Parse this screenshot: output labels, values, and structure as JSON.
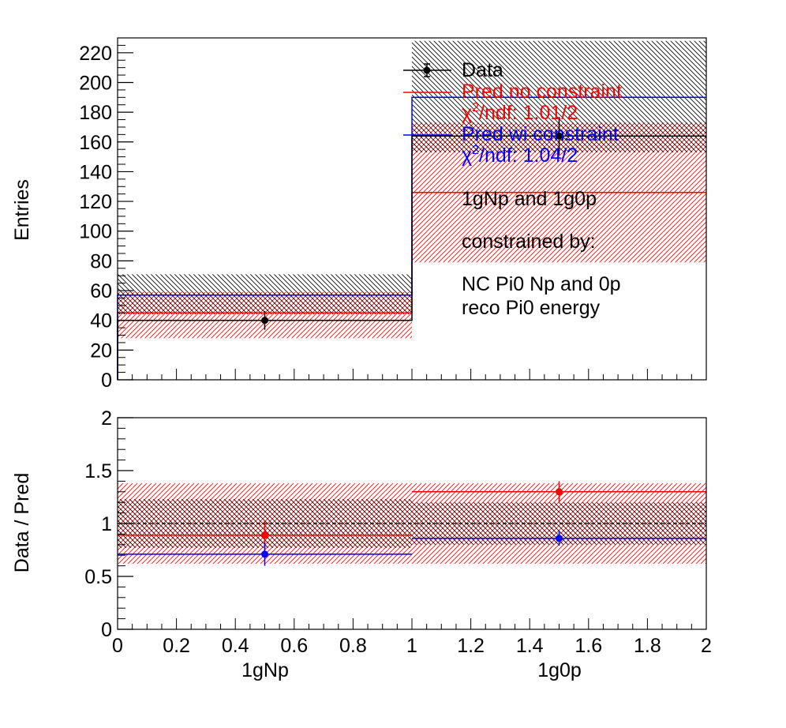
{
  "chart_data": [
    {
      "type": "histogram",
      "panel": "top",
      "ylabel": "Entries",
      "ylim": [
        0,
        230
      ],
      "yticks": [
        0,
        20,
        40,
        60,
        80,
        100,
        120,
        140,
        160,
        180,
        200,
        220
      ],
      "bins": [
        [
          0,
          1
        ],
        [
          1,
          2
        ]
      ],
      "series": [
        {
          "name": "Data",
          "style": "points",
          "color": "#000000",
          "values": [
            40,
            164
          ],
          "err": [
            6.3,
            12.8
          ]
        },
        {
          "name": "Pred no constraint",
          "style": "step",
          "color": "#ff0000",
          "values": [
            45,
            126
          ],
          "band_low": [
            28,
            79
          ],
          "band_high": [
            59,
            173
          ]
        },
        {
          "name": "Pred wi constraint",
          "style": "step",
          "color": "#0000ff",
          "values": [
            57,
            190
          ],
          "band_low": [
            44,
            153
          ],
          "band_high": [
            71,
            228
          ]
        },
        {
          "style": "step",
          "color": "#000000",
          "values": [
            40,
            164
          ]
        }
      ],
      "legend": {
        "placement": "top-right",
        "entries": [
          {
            "label": "Data",
            "color": "#000000"
          },
          {
            "label": "Pred no constraint",
            "color": "#ff0000"
          },
          {
            "label_base": "χ",
            "label_sup": "2",
            "label_rest": "/ndf: 1.01/2",
            "color": "#ff0000"
          },
          {
            "label": "Pred wi constraint",
            "color": "#0000ff"
          },
          {
            "label_base": "χ",
            "label_sup": "2",
            "label_rest": "/ndf: 1.04/2",
            "color": "#0000ff"
          }
        ]
      },
      "annotations": [
        "1gNp and 1g0p",
        "constrained by:",
        "NC Pi0 Np and 0p",
        "reco Pi0 energy"
      ]
    },
    {
      "type": "ratio",
      "panel": "bottom",
      "ylabel": "Data / Pred",
      "xlabel_ticks": [
        "0",
        "0.2",
        "0.4",
        "0.6",
        "0.8",
        "1",
        "1.2",
        "1.4",
        "1.6",
        "1.8",
        "2"
      ],
      "xlim": [
        0,
        2
      ],
      "ylim": [
        0,
        2
      ],
      "yticks": [
        "0",
        "0.5",
        "1",
        "1.5",
        "2"
      ],
      "category_labels": [
        "1gNp",
        "1g0p"
      ],
      "series": [
        {
          "name": "Data / Pred no constraint",
          "color": "#ff0000",
          "values": [
            0.89,
            1.3
          ],
          "err": [
            0.14,
            0.1
          ]
        },
        {
          "name": "Data / Pred wi constraint",
          "color": "#0000ff",
          "values": [
            0.71,
            0.86
          ],
          "err": [
            0.11,
            0.07
          ]
        }
      ],
      "bands": [
        {
          "color": "#ff0000",
          "low": [
            0.62,
            0.62
          ],
          "high": [
            1.38,
            1.38
          ]
        },
        {
          "color": "#000000",
          "low": [
            0.77,
            0.8
          ],
          "high": [
            1.23,
            1.2
          ]
        }
      ],
      "reference_line": 1
    }
  ]
}
